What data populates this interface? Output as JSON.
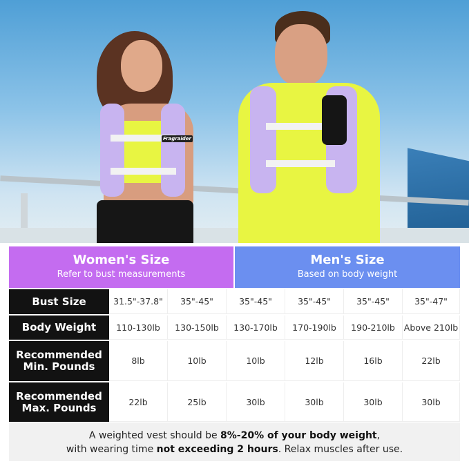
{
  "header": {
    "women": {
      "title": "Women's Size",
      "subtitle": "Refer to bust measurements",
      "color": "#c46cf0"
    },
    "men": {
      "title": "Men's Size",
      "subtitle": "Based on body weight",
      "color": "#6b8ff0"
    }
  },
  "rows": [
    {
      "label": "Bust Size",
      "values": [
        "31.5\"-37.8\"",
        "35\"-45\"",
        "35\"-45\"",
        "35\"-45\"",
        "35\"-45\"",
        "35\"-47\""
      ]
    },
    {
      "label": "Body Weight",
      "values": [
        "110-130lb",
        "130-150lb",
        "130-170lb",
        "170-190lb",
        "190-210lb",
        "Above 210lb"
      ]
    },
    {
      "label": "Recommended Min. Pounds",
      "values": [
        "8lb",
        "10lb",
        "10lb",
        "12lb",
        "16lb",
        "22lb"
      ]
    },
    {
      "label": "Recommended Max. Pounds",
      "values": [
        "22lb",
        "25lb",
        "30lb",
        "30lb",
        "30lb",
        "30lb"
      ]
    }
  ],
  "footer": {
    "line1_pre": "A weighted vest should be ",
    "line1_bold": "8%-20% of your body weight",
    "line1_post": ",",
    "line2_pre": "with wearing time ",
    "line2_bold": "not exceeding 2 hours",
    "line2_post": ". Relax muscles after use."
  },
  "photo": {
    "brand_on_vest": "Fragraider",
    "vest_color": "#c8b4f0",
    "shirt_color": "#e8f542"
  }
}
